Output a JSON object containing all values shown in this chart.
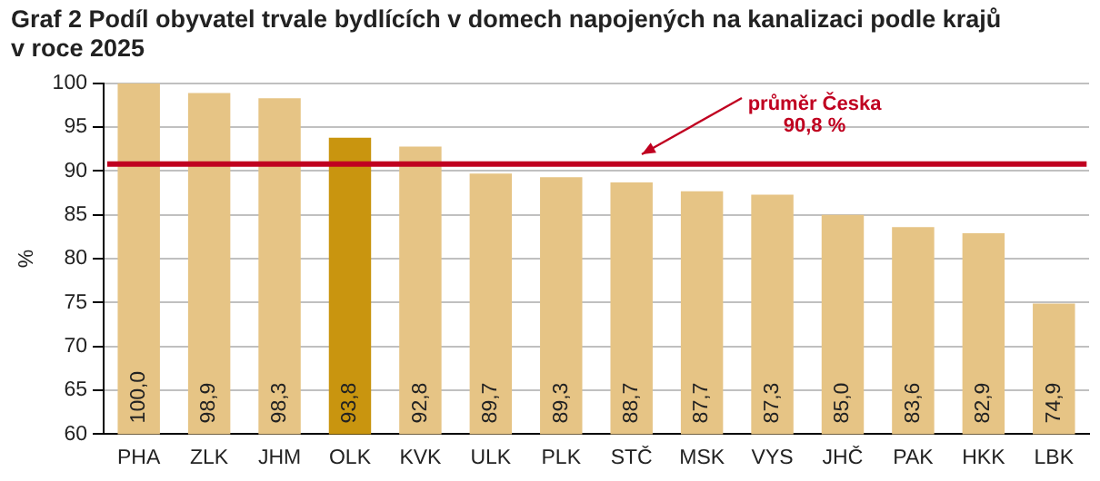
{
  "chart_data": {
    "type": "bar",
    "title": "Graf 2 Podíl obyvatel trvale bydlících v domech napojených na kanalizaci podle krajů\nv roce 2025",
    "ylabel": "%",
    "categories": [
      "PHA",
      "ZLK",
      "JHM",
      "OLK",
      "KVK",
      "ULK",
      "PLK",
      "STČ",
      "MSK",
      "VYS",
      "JHČ",
      "PAK",
      "HKK",
      "LBK"
    ],
    "values": [
      100.0,
      98.9,
      98.3,
      93.8,
      92.8,
      89.7,
      89.3,
      88.7,
      87.7,
      87.3,
      85.0,
      83.6,
      82.9,
      74.9
    ],
    "value_labels": [
      "100,0",
      "98,9",
      "98,3",
      "93,8",
      "92,8",
      "89,7",
      "89,3",
      "88,7",
      "87,7",
      "87,3",
      "85,0",
      "83,6",
      "82,9",
      "74,9"
    ],
    "colors": [
      "#e6c485",
      "#e6c485",
      "#e6c485",
      "#c9950f",
      "#e6c485",
      "#e6c485",
      "#e6c485",
      "#e6c485",
      "#e6c485",
      "#e6c485",
      "#e6c485",
      "#e6c485",
      "#e6c485",
      "#e6c485"
    ],
    "ylim": [
      60,
      100
    ],
    "yticks": [
      60,
      65,
      70,
      75,
      80,
      85,
      90,
      95,
      100
    ],
    "grid": "y",
    "legend": false,
    "ref_lines": [
      {
        "axis": "y",
        "value": 90.8,
        "label": "průměr Česka\n90,8 %",
        "color": "#c00020"
      }
    ]
  }
}
